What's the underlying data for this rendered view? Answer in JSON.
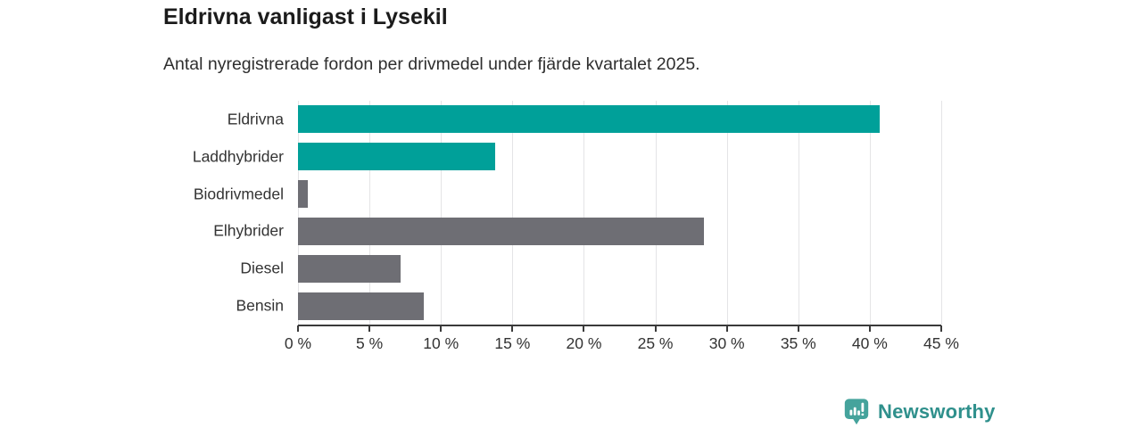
{
  "header": {
    "title": "Eldrivna vanligast i Lysekil",
    "subtitle": "Antal nyregistrerade fordon per drivmedel under fjärde kvartalet 2025."
  },
  "chart_data": {
    "type": "bar",
    "orientation": "horizontal",
    "title": "Eldrivna vanligast i Lysekil",
    "subtitle": "Antal nyregistrerade fordon per drivmedel under fjärde kvartalet 2025.",
    "categories": [
      "Eldrivna",
      "Laddhybrider",
      "Biodrivmedel",
      "Elhybrider",
      "Diesel",
      "Bensin"
    ],
    "values": [
      40.7,
      13.8,
      0.7,
      28.4,
      7.2,
      8.8
    ],
    "unit": "%",
    "xlabel": "",
    "ylabel": "",
    "xlim": [
      0,
      45
    ],
    "xticks": [
      0,
      5,
      10,
      15,
      20,
      25,
      30,
      35,
      40,
      45
    ],
    "xtick_labels": [
      "0 %",
      "5 %",
      "10 %",
      "15 %",
      "20 %",
      "25 %",
      "30 %",
      "35 %",
      "40 %",
      "45 %"
    ],
    "grid": true,
    "legend": "none",
    "bar_colors": [
      "#00a099",
      "#00a099",
      "#6e6e74",
      "#6e6e74",
      "#6e6e74",
      "#6e6e74"
    ]
  },
  "colors": {
    "accent_teal": "#00a099",
    "bar_gray": "#6e6e74",
    "gridline": "#e4e4e6",
    "axis": "#3a3a3a",
    "text_dark": "#1b1b1b",
    "brand_text": "#2f908c",
    "brand_logo": "#45a39c"
  },
  "footer": {
    "brand": "Newsworthy",
    "logo_icon": "bar-chart-speech-bubble-icon"
  }
}
